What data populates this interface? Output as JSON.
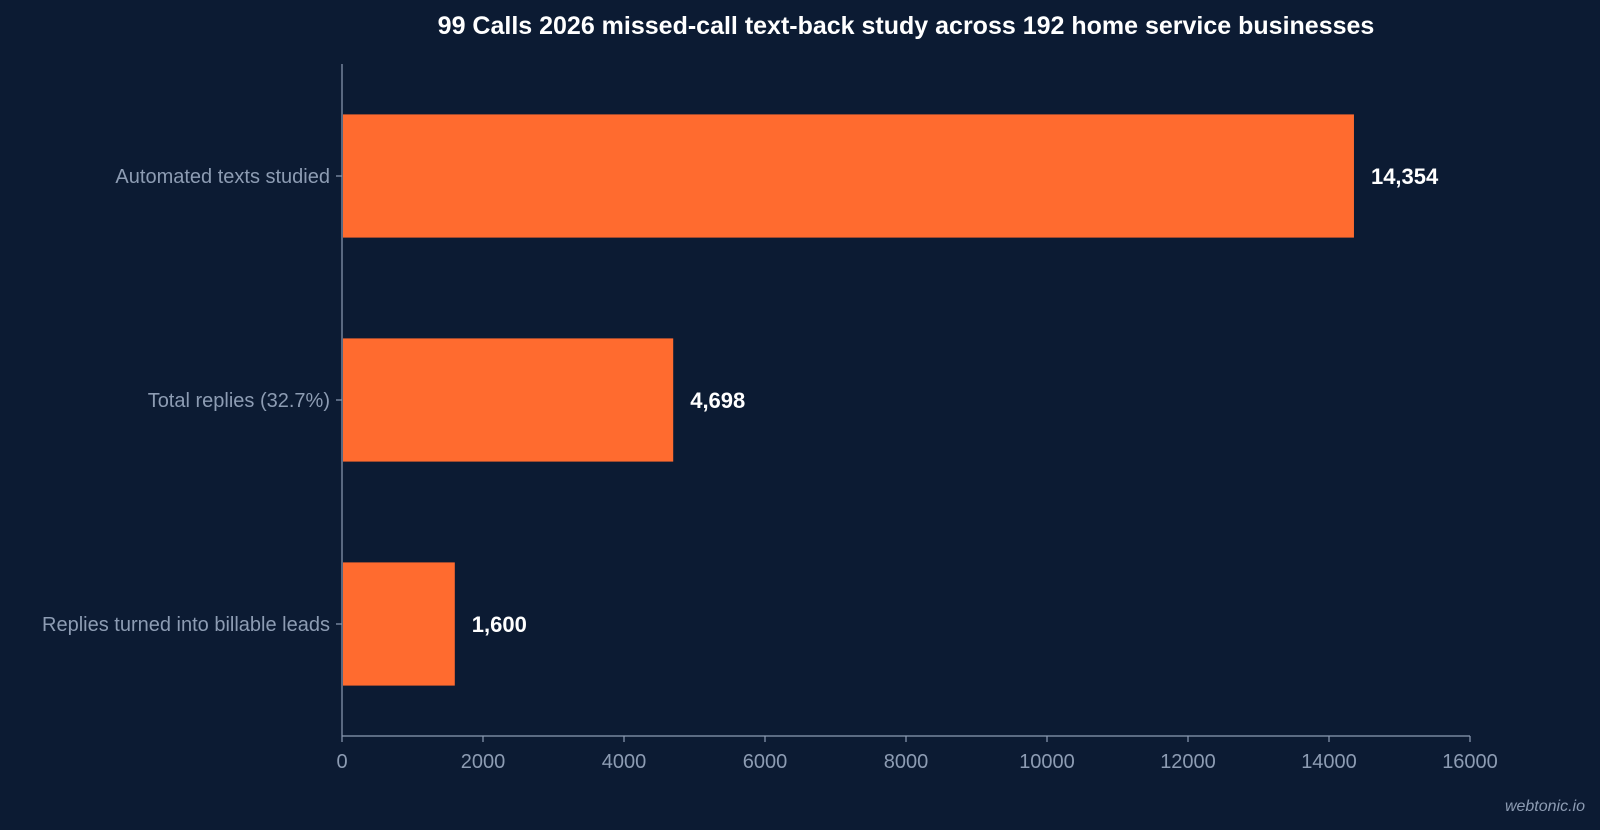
{
  "chart_data": {
    "type": "bar",
    "orientation": "horizontal",
    "title": "99 Calls 2026 missed-call text-back study across 192 home service businesses",
    "categories": [
      "Automated texts studied",
      "Total replies (32.7%)",
      "Replies turned into billable leads"
    ],
    "values": [
      14354,
      4698,
      1600
    ],
    "value_labels": [
      "14,354",
      "4,698",
      "1,600"
    ],
    "xlim": [
      0,
      16000
    ],
    "xticks": [
      0,
      2000,
      4000,
      6000,
      8000,
      10000,
      12000,
      14000,
      16000
    ],
    "xtick_labels": [
      "0",
      "2000",
      "4000",
      "6000",
      "8000",
      "10000",
      "12000",
      "14000",
      "16000"
    ],
    "xlabel": "",
    "ylabel": "",
    "grid": false,
    "legend": "none",
    "colors": {
      "background": "#0c1b33",
      "bar": "#ff6b2f",
      "axis": "#8d9cb3",
      "title": "#ffffff",
      "value_label": "#ffffff"
    }
  },
  "watermark": "webtonic.io"
}
